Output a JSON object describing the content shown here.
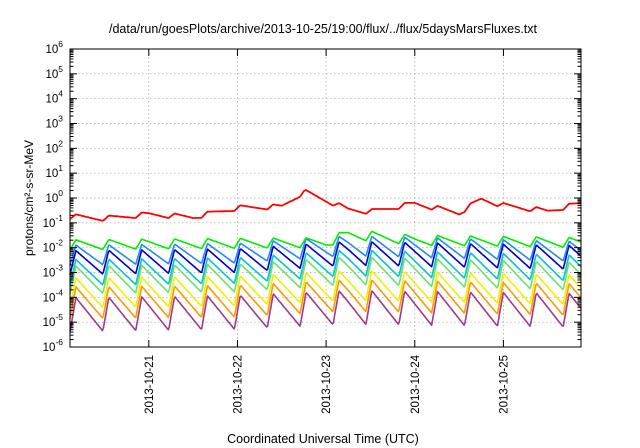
{
  "chart_data": {
    "type": "line",
    "title": "/data/run/goesPlots/archive/2013-10-25/19:00/flux/../flux/5daysMarsFluxes.txt",
    "xlabel": "Coordinated Universal Time (UTC)",
    "ylabel": "protons/cm²-s-sr-MeV",
    "y_scale": "log",
    "ylim": [
      1e-06,
      1000000.0
    ],
    "xlim": [
      "2013-10-20T02:40",
      "2013-10-25T21:00"
    ],
    "x_ticks": [
      "2013-10-21",
      "2013-10-22",
      "2013-10-23",
      "2013-10-24",
      "2013-10-25"
    ],
    "y_ticks": [
      {
        "value": 1e-06,
        "base": "10",
        "exp": "-6"
      },
      {
        "value": 1e-05,
        "base": "10",
        "exp": "-5"
      },
      {
        "value": 0.0001,
        "base": "10",
        "exp": "-4"
      },
      {
        "value": 0.001,
        "base": "10",
        "exp": "-3"
      },
      {
        "value": 0.01,
        "base": "10",
        "exp": "-2"
      },
      {
        "value": 0.1,
        "base": "10",
        "exp": "-1"
      },
      {
        "value": 1,
        "base": "10",
        "exp": "0"
      },
      {
        "value": 10.0,
        "base": "10",
        "exp": "1"
      },
      {
        "value": 100.0,
        "base": "10",
        "exp": "2"
      },
      {
        "value": 1000.0,
        "base": "10",
        "exp": "3"
      },
      {
        "value": 10000.0,
        "base": "10",
        "exp": "4"
      },
      {
        "value": 100000.0,
        "base": "10",
        "exp": "5"
      },
      {
        "value": 1000000.0,
        "base": "10",
        "exp": "6"
      }
    ],
    "grid": true,
    "legend": "none",
    "series": [
      {
        "color": "#ff0000",
        "x": [
          "2013-10-20T02:40",
          "2013-10-20T12:00",
          "2013-10-21T00:00",
          "2013-10-21T12:00",
          "2013-10-22T00:00",
          "2013-10-22T12:00",
          "2013-10-22T18:00",
          "2013-10-23T00:00",
          "2013-10-23T06:00",
          "2013-10-23T12:00",
          "2013-10-24T00:00",
          "2013-10-24T12:00",
          "2013-10-24T18:00",
          "2013-10-25T00:00",
          "2013-10-25T12:00",
          "2013-10-25T21:00"
        ],
        "y": [
          0.18,
          0.15,
          0.22,
          0.17,
          0.4,
          0.45,
          1.8,
          0.8,
          0.35,
          0.28,
          0.6,
          0.25,
          0.9,
          0.5,
          0.3,
          0.6
        ]
      },
      {
        "color": "#00ee00",
        "x": [
          "2013-10-20T02:40",
          "2013-10-21T00:00",
          "2013-10-22T00:00",
          "2013-10-23T00:00",
          "2013-10-23T06:00",
          "2013-10-24T00:00",
          "2013-10-25T00:00",
          "2013-10-25T21:00"
        ],
        "y": [
          0.013,
          0.014,
          0.015,
          0.016,
          0.035,
          0.02,
          0.018,
          0.016
        ]
      },
      {
        "color": "#2288ff",
        "x": [
          "2013-10-20T02:40",
          "2013-10-22T00:00",
          "2013-10-23T06:00",
          "2013-10-25T21:00"
        ],
        "y": [
          0.005,
          0.006,
          0.012,
          0.007
        ]
      },
      {
        "color": "#0000cc",
        "x": [
          "2013-10-20T02:40",
          "2013-10-22T00:00",
          "2013-10-23T06:00",
          "2013-10-25T21:00"
        ],
        "y": [
          0.0025,
          0.003,
          0.006,
          0.004
        ]
      },
      {
        "color": "#00c8c8",
        "x": [
          "2013-10-20T02:40",
          "2013-10-22T00:00",
          "2013-10-23T06:00",
          "2013-10-25T21:00"
        ],
        "y": [
          0.001,
          0.0012,
          0.0025,
          0.0015
        ]
      },
      {
        "color": "#6ee06e",
        "x": [
          "2013-10-20T02:40",
          "2013-10-22T00:00",
          "2013-10-23T06:00",
          "2013-10-25T21:00"
        ],
        "y": [
          0.0005,
          0.0006,
          0.0012,
          0.0007
        ]
      },
      {
        "color": "#f0f000",
        "x": [
          "2013-10-20T02:40",
          "2013-10-22T00:00",
          "2013-10-23T06:00",
          "2013-10-25T21:00"
        ],
        "y": [
          0.00015,
          0.00018,
          0.0003,
          0.0002
        ]
      },
      {
        "color": "#ff9900",
        "x": [
          "2013-10-20T02:40",
          "2013-10-22T00:00",
          "2013-10-23T06:00",
          "2013-10-25T21:00"
        ],
        "y": [
          6e-05,
          7e-05,
          0.00012,
          8e-05
        ]
      },
      {
        "color": "#9e3a8a",
        "x": [
          "2013-10-20T02:40",
          "2013-10-22T00:00",
          "2013-10-23T06:00",
          "2013-10-25T21:00"
        ],
        "y": [
          2e-05,
          2.5e-05,
          4e-05,
          3e-05
        ]
      }
    ]
  }
}
